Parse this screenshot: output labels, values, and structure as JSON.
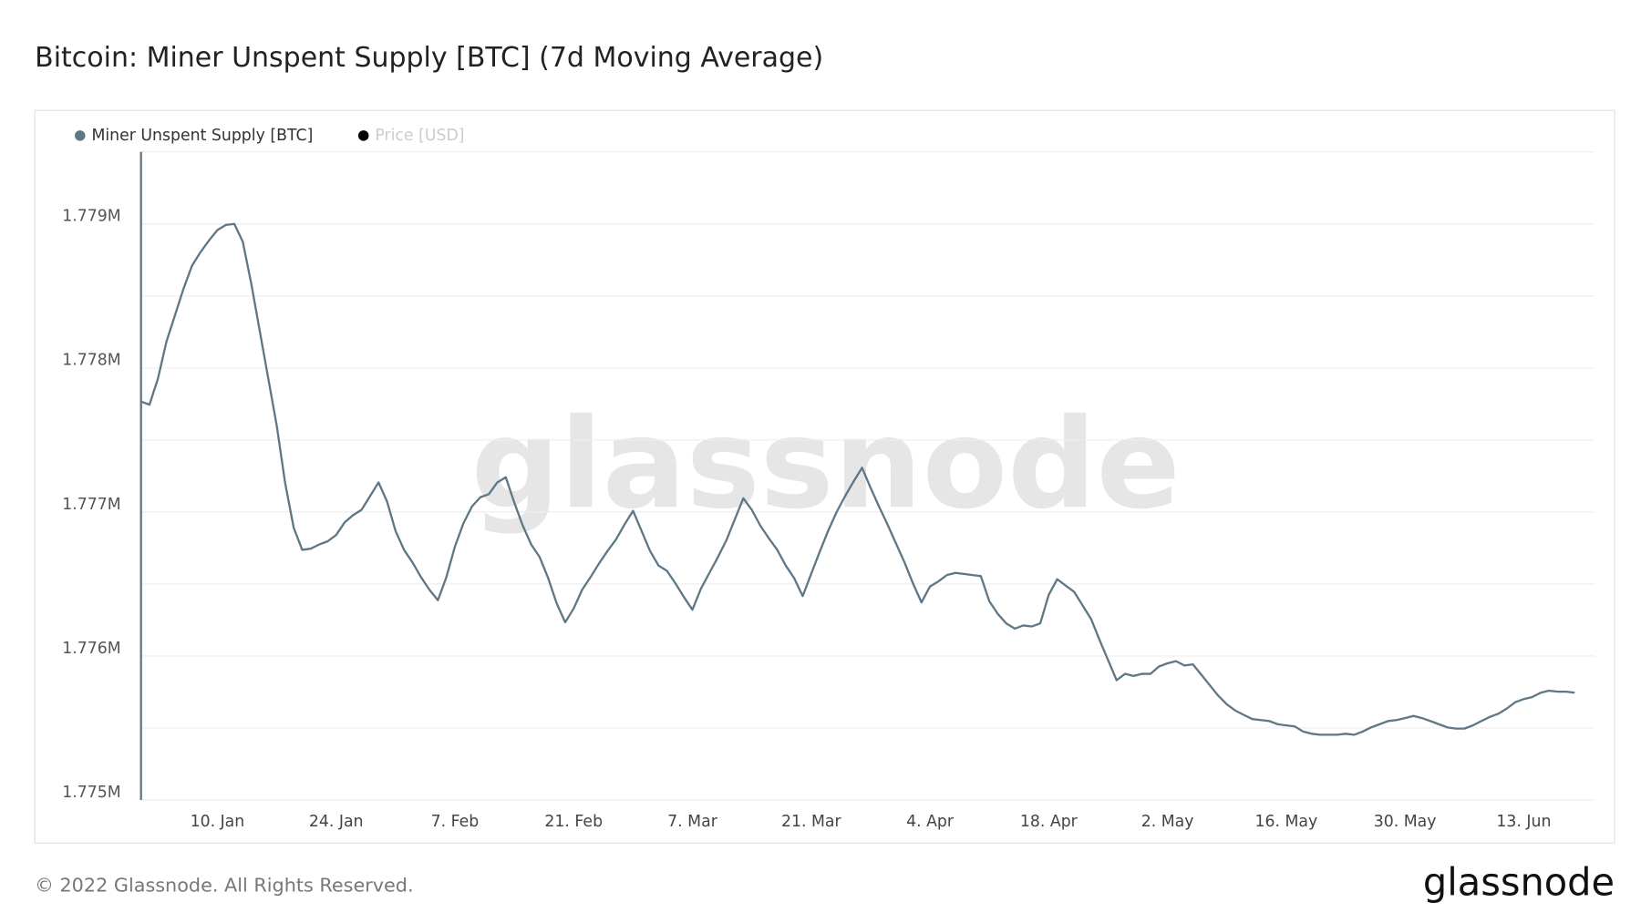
{
  "chart_data": {
    "type": "line",
    "title": "Bitcoin: Miner Unspent Supply [BTC] (7d Moving Average)",
    "watermark": "glassnode",
    "footer": "© 2022 Glassnode. All Rights Reserved.",
    "logo": "glassnode",
    "x": [
      "1. Jan",
      "2. Jan",
      "3. Jan",
      "4. Jan",
      "5. Jan",
      "6. Jan",
      "7. Jan",
      "8. Jan",
      "9. Jan",
      "10. Jan",
      "11. Jan",
      "12. Jan",
      "13. Jan",
      "14. Jan",
      "15. Jan",
      "16. Jan",
      "17. Jan",
      "18. Jan",
      "19. Jan",
      "20. Jan",
      "21. Jan",
      "22. Jan",
      "23. Jan",
      "24. Jan",
      "25. Jan",
      "26. Jan",
      "27. Jan",
      "28. Jan",
      "29. Jan",
      "30. Jan",
      "31. Jan",
      "1. Feb",
      "2. Feb",
      "3. Feb",
      "4. Feb",
      "5. Feb",
      "6. Feb",
      "7. Feb",
      "8. Feb",
      "9. Feb",
      "10. Feb",
      "11. Feb",
      "12. Feb",
      "13. Feb",
      "14. Feb",
      "15. Feb",
      "16. Feb",
      "17. Feb",
      "18. Feb",
      "19. Feb",
      "20. Feb",
      "21. Feb",
      "22. Feb",
      "23. Feb",
      "24. Feb",
      "25. Feb",
      "26. Feb",
      "27. Feb",
      "28. Feb",
      "1. Mar",
      "2. Mar",
      "3. Mar",
      "4. Mar",
      "5. Mar",
      "6. Mar",
      "7. Mar",
      "8. Mar",
      "9. Mar",
      "10. Mar",
      "11. Mar",
      "12. Mar",
      "13. Mar",
      "14. Mar",
      "15. Mar",
      "16. Mar",
      "17. Mar",
      "18. Mar",
      "19. Mar",
      "20. Mar",
      "21. Mar",
      "22. Mar",
      "23. Mar",
      "24. Mar",
      "25. Mar",
      "26. Mar",
      "27. Mar",
      "28. Mar",
      "29. Mar",
      "30. Mar",
      "31. Mar",
      "1. Apr",
      "2. Apr",
      "3. Apr",
      "4. Apr",
      "5. Apr",
      "6. Apr",
      "7. Apr",
      "8. Apr",
      "9. Apr",
      "10. Apr",
      "11. Apr",
      "12. Apr",
      "13. Apr",
      "14. Apr",
      "15. Apr",
      "16. Apr",
      "17. Apr",
      "18. Apr",
      "19. Apr",
      "20. Apr",
      "21. Apr",
      "22. Apr",
      "23. Apr",
      "24. Apr",
      "25. Apr",
      "26. Apr",
      "27. Apr",
      "28. Apr",
      "29. Apr",
      "30. Apr",
      "1. May",
      "2. May",
      "3. May",
      "4. May",
      "5. May",
      "6. May",
      "7. May",
      "8. May",
      "9. May",
      "10. May",
      "11. May",
      "12. May",
      "13. May",
      "14. May",
      "15. May",
      "16. May",
      "17. May",
      "18. May",
      "19. May",
      "20. May",
      "21. May",
      "22. May",
      "23. May",
      "24. May",
      "25. May",
      "26. May",
      "27. May",
      "28. May",
      "29. May",
      "30. May",
      "31. May",
      "1. Jun",
      "2. Jun",
      "3. Jun",
      "4. Jun",
      "5. Jun",
      "6. Jun",
      "7. Jun",
      "8. Jun",
      "9. Jun",
      "10. Jun",
      "11. Jun",
      "12. Jun",
      "13. Jun",
      "14. Jun",
      "15. Jun",
      "16. Jun",
      "17. Jun",
      "18. Jun",
      "19. Jun"
    ],
    "xticks": [
      "10. Jan",
      "24. Jan",
      "7. Feb",
      "21. Feb",
      "7. Mar",
      "21. Mar",
      "4. Apr",
      "18. Apr",
      "2. May",
      "16. May",
      "30. May",
      "13. Jun"
    ],
    "series": [
      {
        "name": "Miner Unspent Supply [BTC]",
        "color": "#5f7785",
        "values": [
          1777767,
          1777745,
          1777927,
          1778183,
          1778365,
          1778548,
          1778708,
          1778803,
          1778884,
          1778957,
          1778993,
          1779000,
          1778876,
          1778584,
          1778256,
          1777927,
          1777599,
          1777197,
          1776891,
          1776737,
          1776745,
          1776774,
          1776796,
          1776840,
          1776927,
          1776978,
          1777015,
          1777110,
          1777205,
          1777073,
          1776869,
          1776737,
          1776650,
          1776548,
          1776460,
          1776387,
          1776548,
          1776759,
          1776920,
          1777037,
          1777102,
          1777124,
          1777205,
          1777241,
          1777066,
          1776905,
          1776774,
          1776686,
          1776540,
          1776365,
          1776234,
          1776329,
          1776460,
          1776548,
          1776643,
          1776730,
          1776810,
          1776913,
          1777008,
          1776869,
          1776730,
          1776628,
          1776591,
          1776504,
          1776409,
          1776321,
          1776467,
          1776577,
          1776686,
          1776803,
          1776949,
          1777095,
          1777015,
          1776905,
          1776818,
          1776737,
          1776628,
          1776540,
          1776416,
          1776570,
          1776723,
          1776869,
          1777000,
          1777110,
          1777212,
          1777307,
          1777168,
          1777037,
          1776913,
          1776781,
          1776650,
          1776504,
          1776372,
          1776482,
          1776518,
          1776562,
          1776577,
          1776570,
          1776562,
          1776555,
          1776380,
          1776292,
          1776226,
          1776190,
          1776212,
          1776205,
          1776226,
          1776424,
          1776533,
          1776489,
          1776445,
          1776351,
          1776256,
          1776110,
          1775971,
          1775832,
          1775876,
          1775861,
          1775876,
          1775876,
          1775927,
          1775949,
          1775964,
          1775934,
          1775942,
          1775869,
          1775796,
          1775723,
          1775664,
          1775621,
          1775591,
          1775562,
          1775555,
          1775548,
          1775526,
          1775518,
          1775511,
          1775475,
          1775460,
          1775453,
          1775453,
          1775453,
          1775460,
          1775453,
          1775475,
          1775504,
          1775526,
          1775548,
          1775555,
          1775569,
          1775584,
          1775569,
          1775548,
          1775526,
          1775504,
          1775496,
          1775496,
          1775518,
          1775548,
          1775577,
          1775599,
          1775635,
          1775679,
          1775701,
          1775715,
          1775745,
          1775759,
          1775752,
          1775752,
          1775745
        ]
      },
      {
        "name": "Price [USD]",
        "color": "#000000",
        "hidden": true
      }
    ],
    "ylim": [
      1775000,
      1779500
    ],
    "yticks": [
      {
        "value": 1775000,
        "label": "1.775M"
      },
      {
        "value": 1776000,
        "label": "1.776M"
      },
      {
        "value": 1777000,
        "label": "1.777M"
      },
      {
        "value": 1778000,
        "label": "1.778M"
      },
      {
        "value": 1779000,
        "label": "1.779M"
      }
    ],
    "yminor_ticks": [
      1775500,
      1776500,
      1777500,
      1778500,
      1779500
    ],
    "grid": true
  }
}
